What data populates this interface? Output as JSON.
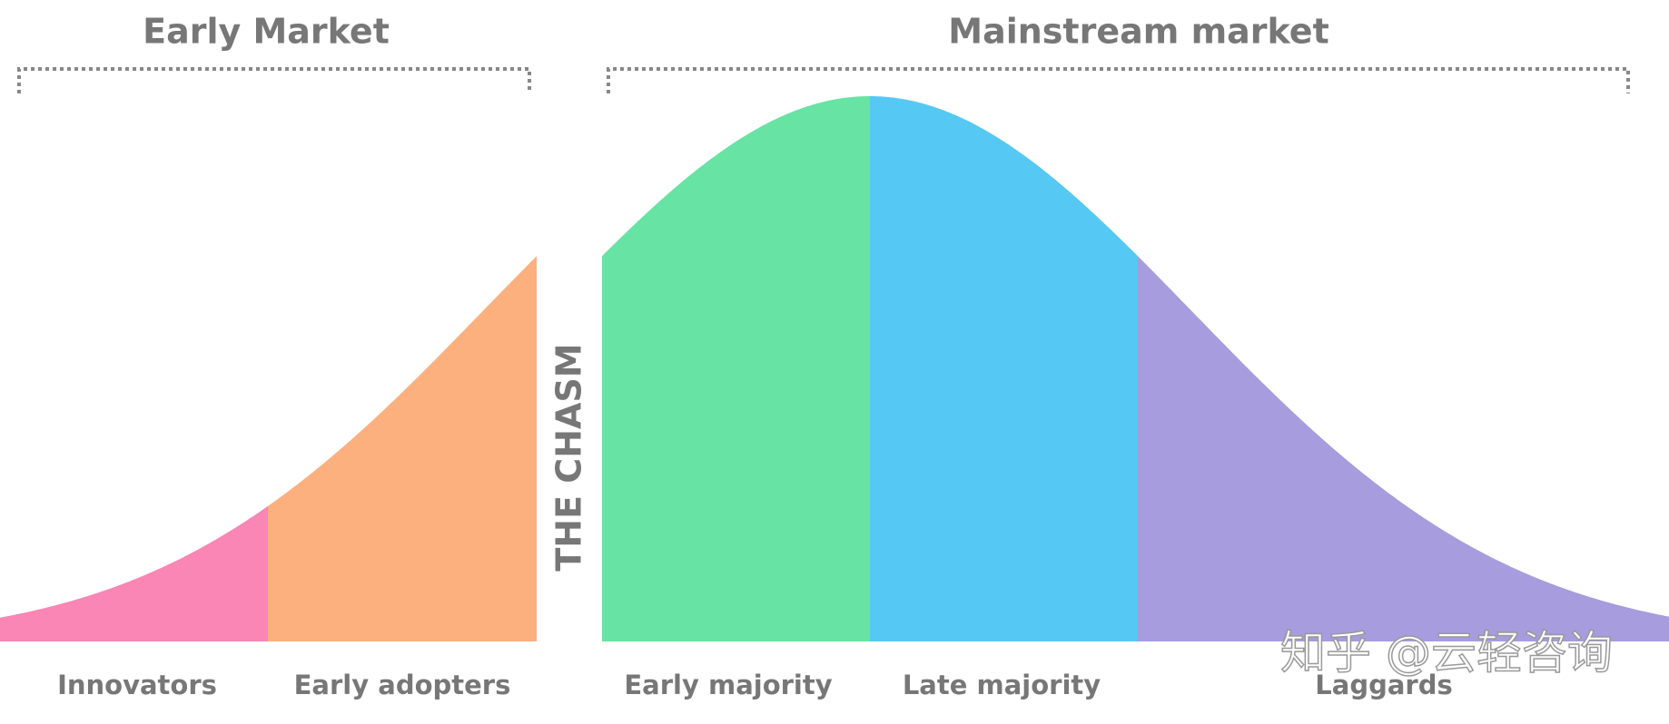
{
  "header": {
    "early_market": "Early Market",
    "mainstream_market": "Mainstream market"
  },
  "chasm": "THE CHASM",
  "segments": [
    {
      "label": "Innovators"
    },
    {
      "label": "Early adopters"
    },
    {
      "label": "Early majority"
    },
    {
      "label": "Late majority"
    },
    {
      "label": "Laggards"
    }
  ],
  "watermark": "知乎 @云轻咨询"
}
